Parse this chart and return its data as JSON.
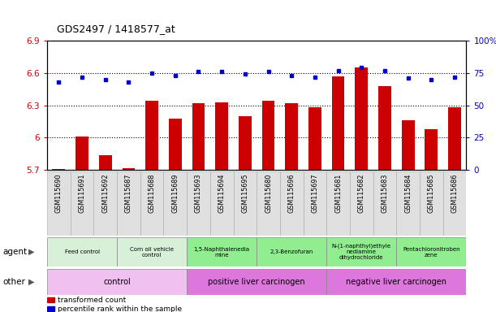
{
  "title": "GDS2497 / 1418577_at",
  "samples": [
    "GSM115690",
    "GSM115691",
    "GSM115692",
    "GSM115687",
    "GSM115688",
    "GSM115689",
    "GSM115693",
    "GSM115694",
    "GSM115695",
    "GSM115680",
    "GSM115696",
    "GSM115697",
    "GSM115681",
    "GSM115682",
    "GSM115683",
    "GSM115684",
    "GSM115685",
    "GSM115686"
  ],
  "red_values": [
    5.71,
    6.01,
    5.84,
    5.72,
    6.34,
    6.18,
    6.32,
    6.33,
    6.2,
    6.34,
    6.32,
    6.28,
    6.57,
    6.65,
    6.48,
    6.16,
    6.08,
    6.28
  ],
  "blue_values": [
    68,
    72,
    70,
    68,
    75,
    73,
    76,
    76,
    74,
    76,
    73,
    72,
    77,
    79,
    77,
    71,
    70,
    72
  ],
  "ylim_left": [
    5.7,
    6.9
  ],
  "ylim_right": [
    0,
    100
  ],
  "yticks_left": [
    5.7,
    6.0,
    6.3,
    6.6,
    6.9
  ],
  "yticks_right": [
    0,
    25,
    50,
    75,
    100
  ],
  "ytick_labels_left": [
    "5.7",
    "6",
    "6.3",
    "6.6",
    "6.9"
  ],
  "ytick_labels_right": [
    "0",
    "25",
    "50",
    "75",
    "100%"
  ],
  "hlines": [
    6.0,
    6.3,
    6.6
  ],
  "agent_groups": [
    {
      "label": "Feed control",
      "start": 0,
      "end": 3,
      "color": "#d8f0d8"
    },
    {
      "label": "Corn oil vehicle\ncontrol",
      "start": 3,
      "end": 6,
      "color": "#d8f0d8"
    },
    {
      "label": "1,5-Naphthalenedia\nmine",
      "start": 6,
      "end": 9,
      "color": "#90ee90"
    },
    {
      "label": "2,3-Benzofuran",
      "start": 9,
      "end": 12,
      "color": "#90ee90"
    },
    {
      "label": "N-(1-naphthyl)ethyle\nnediamine\ndihydrochloride",
      "start": 12,
      "end": 15,
      "color": "#90ee90"
    },
    {
      "label": "Pentachloronitroben\nzene",
      "start": 15,
      "end": 18,
      "color": "#90ee90"
    }
  ],
  "other_groups": [
    {
      "label": "control",
      "start": 0,
      "end": 6,
      "color": "#f0c0f0"
    },
    {
      "label": "positive liver carcinogen",
      "start": 6,
      "end": 12,
      "color": "#dd77dd"
    },
    {
      "label": "negative liver carcinogen",
      "start": 12,
      "end": 18,
      "color": "#dd77dd"
    }
  ],
  "bar_color": "#cc0000",
  "dot_color": "#0000cc",
  "legend_items": [
    {
      "color": "#cc0000",
      "label": "transformed count"
    },
    {
      "color": "#0000cc",
      "label": "percentile rank within the sample"
    }
  ]
}
